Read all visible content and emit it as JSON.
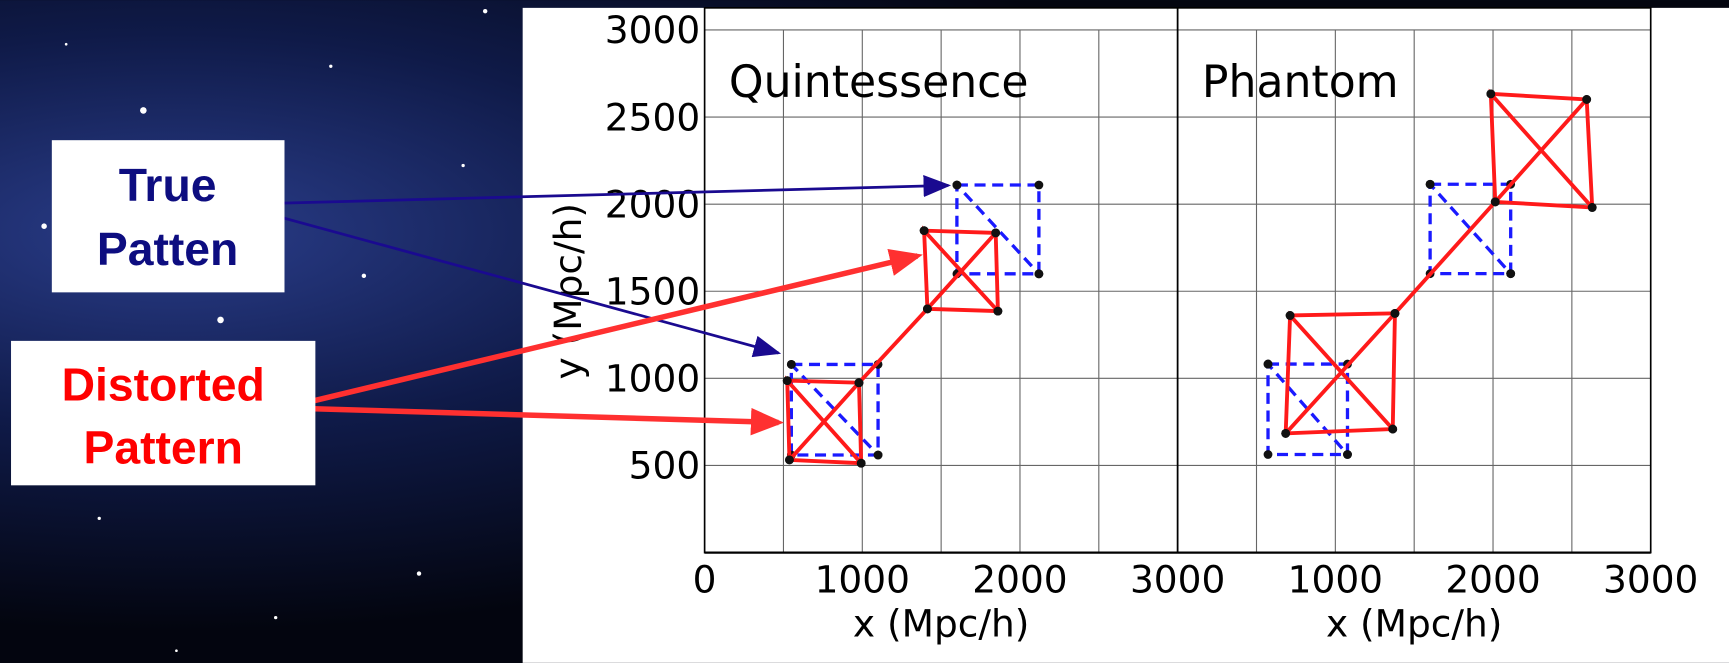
{
  "annotations": [
    {
      "lines": [
        "True",
        "Patten"
      ],
      "color": "#0d0d80"
    },
    {
      "lines": [
        "Distorted",
        "Pattern"
      ],
      "color": "#ff0000"
    }
  ],
  "chart_data": [
    {
      "type": "line",
      "title": "Quintessence",
      "xlabel": "x (Mpc/h)",
      "ylabel": "y (Mpc/h)",
      "xlim": [
        0,
        3000
      ],
      "ylim": [
        0,
        3000
      ],
      "xticks": [
        0,
        1000,
        2000,
        3000
      ],
      "xminorticks": [
        500,
        1500,
        2500
      ],
      "yticks": [
        500,
        1000,
        1500,
        2000,
        2500,
        3000
      ],
      "grid": true,
      "series": [
        {
          "color": "#1a1aff",
          "style": "dashed",
          "x": [
            550,
            1100,
            1100,
            550,
            550,
            1100
          ],
          "y": [
            1080,
            1080,
            560,
            560,
            1080,
            560
          ]
        },
        {
          "color": "#1a1aff",
          "style": "dashed",
          "x": [
            1600,
            2120,
            2120,
            1600,
            1600,
            2120
          ],
          "y": [
            2110,
            2110,
            1600,
            1600,
            2110,
            1600
          ]
        },
        {
          "color": "#ff1a1a",
          "style": "solid",
          "x": [
            524,
            979,
            993,
            538,
            524,
            993,
            null,
            979,
            538
          ],
          "y": [
            987,
            975,
            513,
            532,
            987,
            513,
            null,
            975,
            532
          ]
        },
        {
          "color": "#ff1a1a",
          "style": "solid",
          "x": [
            1392,
            1846,
            1860,
            1413,
            1392,
            1860,
            null,
            1846,
            1413
          ],
          "y": [
            1848,
            1835,
            1386,
            1399,
            1848,
            1386,
            null,
            1835,
            1399
          ]
        },
        {
          "color": "#ff1a1a",
          "style": "solid",
          "x": [
            979,
            1413
          ],
          "y": [
            975,
            1399
          ]
        }
      ]
    },
    {
      "type": "line",
      "title": "Phantom",
      "xlabel": "x (Mpc/h)",
      "xlim": [
        0,
        3000
      ],
      "ylim": [
        0,
        3000
      ],
      "xticks": [
        1000,
        2000,
        3000
      ],
      "xminorticks": [
        500,
        1500,
        2500
      ],
      "ygridlines": [
        500,
        1000,
        1500,
        2000,
        2500,
        3000
      ],
      "grid": true,
      "series": [
        {
          "color": "#1a1aff",
          "style": "dashed",
          "x": [
            573,
            1077,
            1077,
            573,
            573,
            1077
          ],
          "y": [
            1082,
            1082,
            563,
            563,
            1082,
            563
          ]
        },
        {
          "color": "#1a1aff",
          "style": "dashed",
          "x": [
            1601,
            2112,
            2112,
            1601,
            1601,
            2112
          ],
          "y": [
            2114,
            2114,
            1601,
            1601,
            2114,
            1601
          ]
        },
        {
          "color": "#ff1a1a",
          "style": "solid",
          "x": [
            713,
            1378,
            1364,
            685,
            713,
            1364,
            null,
            1378,
            685
          ],
          "y": [
            1361,
            1373,
            709,
            684,
            1361,
            709,
            null,
            1373,
            684
          ]
        },
        {
          "color": "#ff1a1a",
          "style": "solid",
          "x": [
            1986,
            2594,
            2629,
            2014,
            1986,
            2629,
            null,
            2594,
            2014
          ],
          "y": [
            2633,
            2601,
            1981,
            2013,
            2633,
            1981,
            null,
            2601,
            2013
          ]
        },
        {
          "color": "#ff1a1a",
          "style": "solid",
          "x": [
            1378,
            2014
          ],
          "y": [
            1373,
            2013
          ]
        }
      ]
    }
  ]
}
